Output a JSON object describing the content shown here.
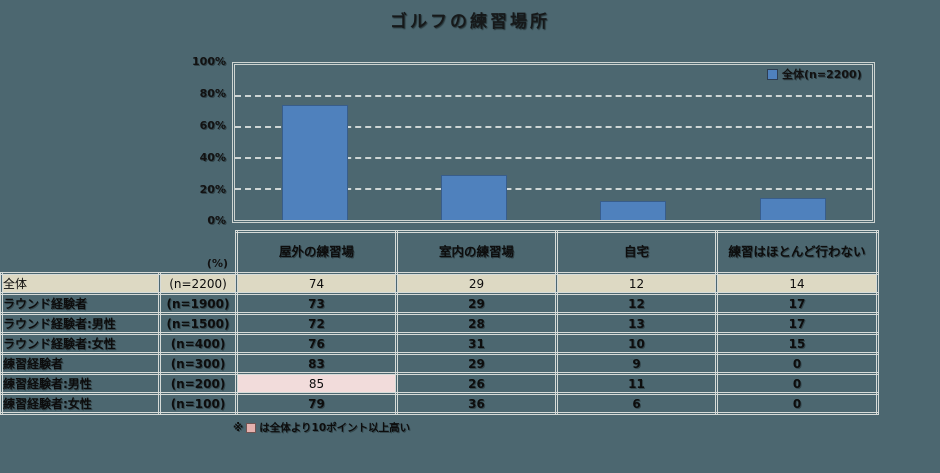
{
  "page": {
    "background_color": "#4C6770"
  },
  "chart": {
    "unit_label": "(%)",
    "y_ticks": [
      "100%",
      "80%",
      "60%",
      "40%",
      "20%",
      "0%"
    ],
    "bar_color": "#4F81BD",
    "bar_border_color": "#385D8A"
  },
  "chart_data": [
    {
      "type": "bar",
      "title": "ゴルフの練習場所",
      "categories": [
        "屋外の練習場",
        "室内の練習場",
        "自宅",
        "練習はほとんど行わない"
      ],
      "series": [
        {
          "name": "全体(n=2200)",
          "values": [
            74,
            29,
            12,
            14
          ]
        }
      ],
      "ylabel": "(%)",
      "ylim": [
        0,
        100
      ],
      "y_tick_step": 20,
      "grid": true,
      "legend_position": "top-right",
      "bar_color": "#4F81BD"
    },
    {
      "type": "table",
      "columns": [
        "屋外の練習場",
        "室内の練習場",
        "自宅",
        "練習はほとんど行わない"
      ],
      "rows": [
        {
          "label": "全体",
          "n": "(n=2200)",
          "values": [
            74,
            29,
            12,
            14
          ]
        },
        {
          "label": "ラウンド経験者",
          "n": "(n=1900)",
          "values": [
            73,
            29,
            12,
            17
          ]
        },
        {
          "label": "ラウンド経験者:男性",
          "n": "(n=1500)",
          "values": [
            72,
            28,
            13,
            17
          ]
        },
        {
          "label": "ラウンド経験者:女性",
          "n": "(n=400)",
          "values": [
            76,
            31,
            10,
            15
          ]
        },
        {
          "label": "練習経験者",
          "n": "(n=300)",
          "values": [
            83,
            29,
            9,
            0
          ]
        },
        {
          "label": "練習経験者:男性",
          "n": "(n=200)",
          "values": [
            85,
            26,
            11,
            0
          ],
          "highlighted_cells": [
            0
          ]
        },
        {
          "label": "練習経験者:女性",
          "n": "(n=100)",
          "values": [
            79,
            36,
            6,
            0
          ]
        }
      ],
      "total_row_color": "#DDD9C3",
      "highlight_color": "#F2DCDB"
    }
  ],
  "footnote": {
    "marker": "※",
    "text": "は全体より10ポイント以上高い",
    "swatch_color": "#E5B1AE"
  }
}
